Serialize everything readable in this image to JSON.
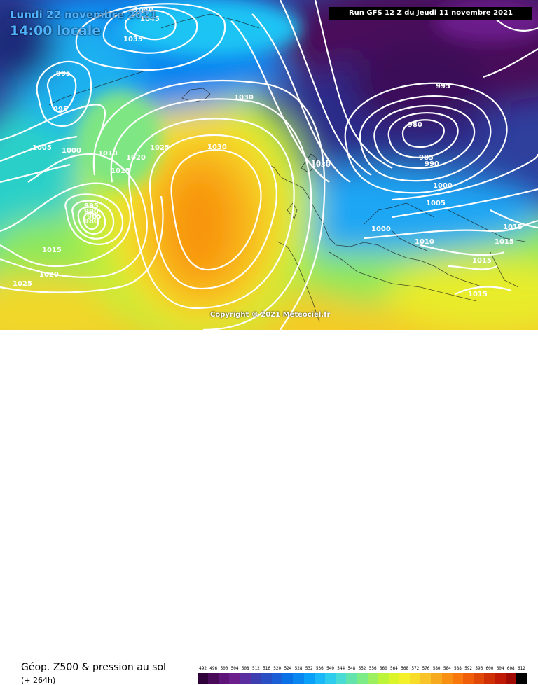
{
  "header": {
    "date_line": "Lundi 22 novembre 2021",
    "time_line": "14:00 locale",
    "run_info": "Run GFS 12 Z du Jeudi 11 novembre 2021"
  },
  "copyright": "Copyright © 2021 Meteociel.fr",
  "footer": {
    "product": "Géop. Z500 & pression au sol",
    "range": "(+ 264h)"
  },
  "scale": {
    "labels": [
      "492",
      "496",
      "500",
      "504",
      "508",
      "512",
      "516",
      "520",
      "524",
      "528",
      "532",
      "536",
      "540",
      "544",
      "548",
      "552",
      "556",
      "560",
      "564",
      "568",
      "572",
      "576",
      "580",
      "584",
      "588",
      "592",
      "596",
      "600",
      "604",
      "608",
      "612"
    ],
    "colors": [
      "#30003a",
      "#4a0a5a",
      "#5e1478",
      "#6c1e8c",
      "#5a2ea0",
      "#3d3fb0",
      "#2a4fc2",
      "#1b5ed6",
      "#0a70e6",
      "#0a86f0",
      "#0aa0f8",
      "#1ab8f8",
      "#30ccee",
      "#4adcd4",
      "#64e4ac",
      "#7eec86",
      "#9cf060",
      "#bcf43a",
      "#dcf42a",
      "#f4f02a",
      "#f8dc2a",
      "#f8c42a",
      "#f8aa1e",
      "#f89014",
      "#f8780e",
      "#f05e0a",
      "#e04808",
      "#d03006",
      "#c01a06",
      "#a00c04",
      "#000000"
    ]
  },
  "isobars": [
    "1040",
    "1045",
    "1035",
    "1030",
    "995",
    "995",
    "1005",
    "1000",
    "1010",
    "1020",
    "1025",
    "1030",
    "1015",
    "995",
    "990",
    "985",
    "980",
    "1015",
    "1020",
    "1025",
    "1030",
    "995",
    "980",
    "985",
    "990",
    "1015",
    "1000",
    "1005",
    "1000",
    "1010",
    "1015",
    "1015",
    "1015",
    "1015"
  ],
  "legend_colors": {
    "low_geopotential": "#3a0a48",
    "mid_geopotential": "#0a86f0",
    "high_geopotential": "#f89014",
    "isobar_color": "#ffffff"
  }
}
